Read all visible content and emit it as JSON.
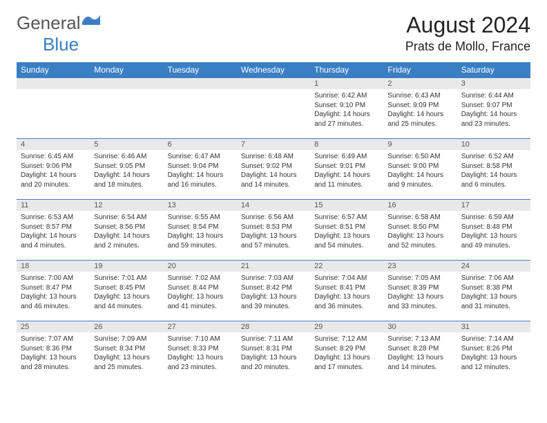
{
  "brand": {
    "part1": "General",
    "part2": "Blue"
  },
  "title": "August 2024",
  "location": "Prats de Mollo, France",
  "colors": {
    "accent": "#3a7fc4",
    "header_bg": "#3a7fc4",
    "header_text": "#ffffff",
    "daynum_bg": "#e9e9e9",
    "daynum_text": "#555555",
    "body_text": "#333333",
    "row_border": "#3a7fc4"
  },
  "fonts": {
    "title_size_pt": 24,
    "location_size_pt": 14,
    "header_size_pt": 9,
    "cell_size_pt": 7.5
  },
  "weekdays": [
    "Sunday",
    "Monday",
    "Tuesday",
    "Wednesday",
    "Thursday",
    "Friday",
    "Saturday"
  ],
  "calendar": {
    "type": "table",
    "columns": 7,
    "rows": 5,
    "blank_cells_before": 4,
    "cells": [
      {
        "n": "",
        "sr": "",
        "ss": "",
        "dl1": "",
        "dl2": ""
      },
      {
        "n": "",
        "sr": "",
        "ss": "",
        "dl1": "",
        "dl2": ""
      },
      {
        "n": "",
        "sr": "",
        "ss": "",
        "dl1": "",
        "dl2": ""
      },
      {
        "n": "",
        "sr": "",
        "ss": "",
        "dl1": "",
        "dl2": ""
      },
      {
        "n": "1",
        "sr": "Sunrise: 6:42 AM",
        "ss": "Sunset: 9:10 PM",
        "dl1": "Daylight: 14 hours",
        "dl2": "and 27 minutes."
      },
      {
        "n": "2",
        "sr": "Sunrise: 6:43 AM",
        "ss": "Sunset: 9:09 PM",
        "dl1": "Daylight: 14 hours",
        "dl2": "and 25 minutes."
      },
      {
        "n": "3",
        "sr": "Sunrise: 6:44 AM",
        "ss": "Sunset: 9:07 PM",
        "dl1": "Daylight: 14 hours",
        "dl2": "and 23 minutes."
      },
      {
        "n": "4",
        "sr": "Sunrise: 6:45 AM",
        "ss": "Sunset: 9:06 PM",
        "dl1": "Daylight: 14 hours",
        "dl2": "and 20 minutes."
      },
      {
        "n": "5",
        "sr": "Sunrise: 6:46 AM",
        "ss": "Sunset: 9:05 PM",
        "dl1": "Daylight: 14 hours",
        "dl2": "and 18 minutes."
      },
      {
        "n": "6",
        "sr": "Sunrise: 6:47 AM",
        "ss": "Sunset: 9:04 PM",
        "dl1": "Daylight: 14 hours",
        "dl2": "and 16 minutes."
      },
      {
        "n": "7",
        "sr": "Sunrise: 6:48 AM",
        "ss": "Sunset: 9:02 PM",
        "dl1": "Daylight: 14 hours",
        "dl2": "and 14 minutes."
      },
      {
        "n": "8",
        "sr": "Sunrise: 6:49 AM",
        "ss": "Sunset: 9:01 PM",
        "dl1": "Daylight: 14 hours",
        "dl2": "and 11 minutes."
      },
      {
        "n": "9",
        "sr": "Sunrise: 6:50 AM",
        "ss": "Sunset: 9:00 PM",
        "dl1": "Daylight: 14 hours",
        "dl2": "and 9 minutes."
      },
      {
        "n": "10",
        "sr": "Sunrise: 6:52 AM",
        "ss": "Sunset: 8:58 PM",
        "dl1": "Daylight: 14 hours",
        "dl2": "and 6 minutes."
      },
      {
        "n": "11",
        "sr": "Sunrise: 6:53 AM",
        "ss": "Sunset: 8:57 PM",
        "dl1": "Daylight: 14 hours",
        "dl2": "and 4 minutes."
      },
      {
        "n": "12",
        "sr": "Sunrise: 6:54 AM",
        "ss": "Sunset: 8:56 PM",
        "dl1": "Daylight: 14 hours",
        "dl2": "and 2 minutes."
      },
      {
        "n": "13",
        "sr": "Sunrise: 6:55 AM",
        "ss": "Sunset: 8:54 PM",
        "dl1": "Daylight: 13 hours",
        "dl2": "and 59 minutes."
      },
      {
        "n": "14",
        "sr": "Sunrise: 6:56 AM",
        "ss": "Sunset: 8:53 PM",
        "dl1": "Daylight: 13 hours",
        "dl2": "and 57 minutes."
      },
      {
        "n": "15",
        "sr": "Sunrise: 6:57 AM",
        "ss": "Sunset: 8:51 PM",
        "dl1": "Daylight: 13 hours",
        "dl2": "and 54 minutes."
      },
      {
        "n": "16",
        "sr": "Sunrise: 6:58 AM",
        "ss": "Sunset: 8:50 PM",
        "dl1": "Daylight: 13 hours",
        "dl2": "and 52 minutes."
      },
      {
        "n": "17",
        "sr": "Sunrise: 6:59 AM",
        "ss": "Sunset: 8:48 PM",
        "dl1": "Daylight: 13 hours",
        "dl2": "and 49 minutes."
      },
      {
        "n": "18",
        "sr": "Sunrise: 7:00 AM",
        "ss": "Sunset: 8:47 PM",
        "dl1": "Daylight: 13 hours",
        "dl2": "and 46 minutes."
      },
      {
        "n": "19",
        "sr": "Sunrise: 7:01 AM",
        "ss": "Sunset: 8:45 PM",
        "dl1": "Daylight: 13 hours",
        "dl2": "and 44 minutes."
      },
      {
        "n": "20",
        "sr": "Sunrise: 7:02 AM",
        "ss": "Sunset: 8:44 PM",
        "dl1": "Daylight: 13 hours",
        "dl2": "and 41 minutes."
      },
      {
        "n": "21",
        "sr": "Sunrise: 7:03 AM",
        "ss": "Sunset: 8:42 PM",
        "dl1": "Daylight: 13 hours",
        "dl2": "and 39 minutes."
      },
      {
        "n": "22",
        "sr": "Sunrise: 7:04 AM",
        "ss": "Sunset: 8:41 PM",
        "dl1": "Daylight: 13 hours",
        "dl2": "and 36 minutes."
      },
      {
        "n": "23",
        "sr": "Sunrise: 7:05 AM",
        "ss": "Sunset: 8:39 PM",
        "dl1": "Daylight: 13 hours",
        "dl2": "and 33 minutes."
      },
      {
        "n": "24",
        "sr": "Sunrise: 7:06 AM",
        "ss": "Sunset: 8:38 PM",
        "dl1": "Daylight: 13 hours",
        "dl2": "and 31 minutes."
      },
      {
        "n": "25",
        "sr": "Sunrise: 7:07 AM",
        "ss": "Sunset: 8:36 PM",
        "dl1": "Daylight: 13 hours",
        "dl2": "and 28 minutes."
      },
      {
        "n": "26",
        "sr": "Sunrise: 7:09 AM",
        "ss": "Sunset: 8:34 PM",
        "dl1": "Daylight: 13 hours",
        "dl2": "and 25 minutes."
      },
      {
        "n": "27",
        "sr": "Sunrise: 7:10 AM",
        "ss": "Sunset: 8:33 PM",
        "dl1": "Daylight: 13 hours",
        "dl2": "and 23 minutes."
      },
      {
        "n": "28",
        "sr": "Sunrise: 7:11 AM",
        "ss": "Sunset: 8:31 PM",
        "dl1": "Daylight: 13 hours",
        "dl2": "and 20 minutes."
      },
      {
        "n": "29",
        "sr": "Sunrise: 7:12 AM",
        "ss": "Sunset: 8:29 PM",
        "dl1": "Daylight: 13 hours",
        "dl2": "and 17 minutes."
      },
      {
        "n": "30",
        "sr": "Sunrise: 7:13 AM",
        "ss": "Sunset: 8:28 PM",
        "dl1": "Daylight: 13 hours",
        "dl2": "and 14 minutes."
      },
      {
        "n": "31",
        "sr": "Sunrise: 7:14 AM",
        "ss": "Sunset: 8:26 PM",
        "dl1": "Daylight: 13 hours",
        "dl2": "and 12 minutes."
      }
    ]
  }
}
